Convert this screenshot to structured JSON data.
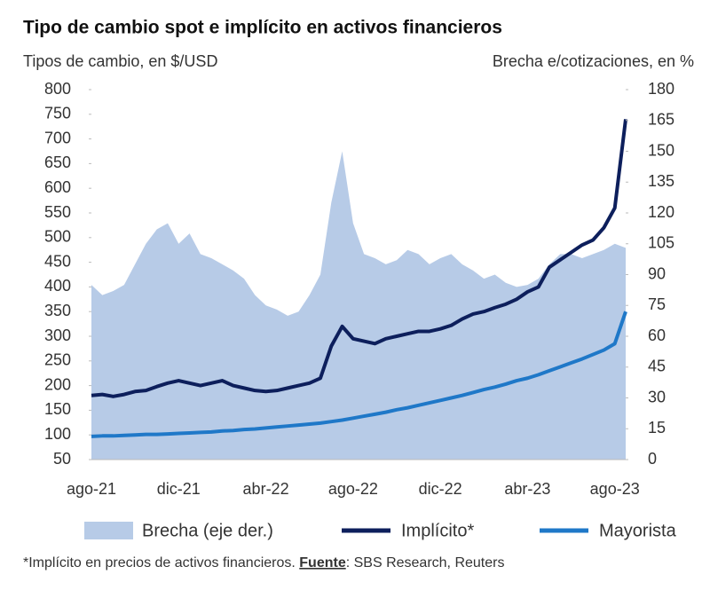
{
  "chart_data": {
    "type": "line",
    "title": "Tipo de cambio spot e implícito en activos financieros",
    "y_label": "Tipos de cambio, en $/USD",
    "y2_label": "Brecha e/cotizaciones, en %",
    "categories": [
      "ago-21",
      null,
      null,
      null,
      null,
      null,
      null,
      null,
      "dic-21",
      null,
      null,
      null,
      null,
      null,
      null,
      null,
      "abr-22",
      null,
      null,
      null,
      null,
      null,
      null,
      null,
      "ago-22",
      null,
      null,
      null,
      null,
      null,
      null,
      null,
      "dic-22",
      null,
      null,
      null,
      null,
      null,
      null,
      null,
      "abr-23",
      null,
      null,
      null,
      null,
      null,
      null,
      null,
      "ago-23",
      null
    ],
    "series": [
      {
        "name": "Brecha (eje der.)",
        "kind": "area",
        "axis": "y2",
        "color": "#b7cbe7",
        "values": [
          85,
          80,
          82,
          85,
          95,
          105,
          112,
          115,
          105,
          110,
          100,
          98,
          95,
          92,
          88,
          80,
          75,
          73,
          70,
          72,
          80,
          90,
          125,
          150,
          115,
          100,
          98,
          95,
          97,
          102,
          100,
          95,
          98,
          100,
          95,
          92,
          88,
          90,
          86,
          84,
          85,
          88,
          95,
          100,
          100,
          98,
          100,
          102,
          105,
          103
        ]
      },
      {
        "name": "Implícito*",
        "kind": "line",
        "color": "#0d1f5c",
        "values": [
          180,
          182,
          178,
          182,
          188,
          190,
          198,
          205,
          210,
          205,
          200,
          205,
          210,
          200,
          195,
          190,
          188,
          190,
          195,
          200,
          205,
          215,
          280,
          320,
          295,
          290,
          285,
          295,
          300,
          305,
          310,
          310,
          315,
          322,
          335,
          345,
          350,
          358,
          365,
          375,
          390,
          400,
          440,
          455,
          470,
          485,
          495,
          520,
          560,
          740
        ]
      },
      {
        "name": "Mayorista",
        "kind": "line",
        "color": "#1f78c8",
        "values": [
          97,
          98,
          98,
          99,
          100,
          101,
          101,
          102,
          103,
          104,
          105,
          106,
          108,
          109,
          111,
          112,
          114,
          116,
          118,
          120,
          122,
          124,
          127,
          130,
          134,
          138,
          142,
          146,
          151,
          155,
          160,
          165,
          170,
          175,
          180,
          186,
          192,
          197,
          203,
          210,
          215,
          222,
          230,
          238,
          246,
          254,
          263,
          272,
          285,
          350
        ]
      }
    ],
    "ylim": [
      50,
      800
    ],
    "yticks": [
      50,
      100,
      150,
      200,
      250,
      300,
      350,
      400,
      450,
      500,
      550,
      600,
      650,
      700,
      750,
      800
    ],
    "y2lim": [
      0,
      180
    ],
    "y2ticks": [
      0,
      15,
      30,
      45,
      60,
      75,
      90,
      105,
      120,
      135,
      150,
      165,
      180
    ],
    "grid": false,
    "footnote": {
      "text": "*Implícito en precios de activos financieros. ",
      "source_label": "Fuente",
      "source": ": SBS Research, Reuters"
    }
  }
}
